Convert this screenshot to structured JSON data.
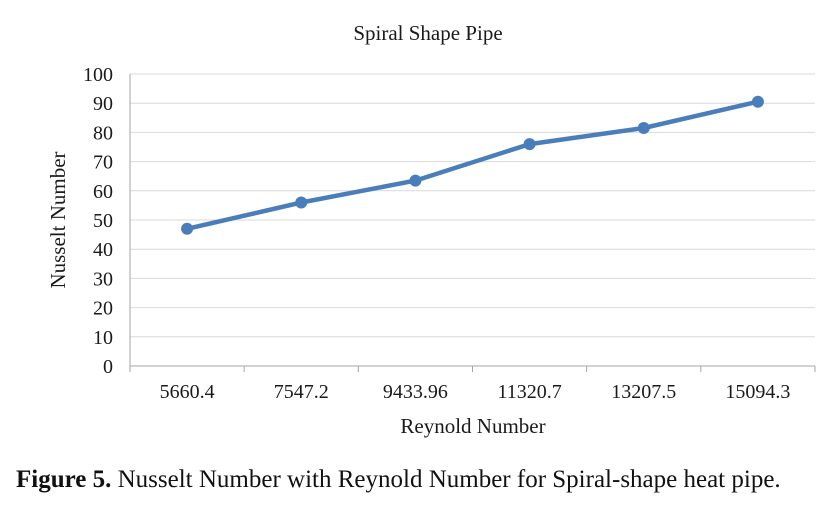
{
  "chart_data": {
    "type": "line",
    "title": "Spiral Shape Pipe",
    "xlabel": "Reynold Number",
    "ylabel": "Nusselt Number",
    "categories": [
      "5660.4",
      "7547.2",
      "9433.96",
      "11320.7",
      "13207.5",
      "15094.3"
    ],
    "series": [
      {
        "values": [
          47,
          56,
          63.5,
          76,
          81.5,
          90.5
        ]
      }
    ],
    "ylim": [
      0,
      100
    ],
    "yticks": [
      0,
      10,
      20,
      30,
      40,
      50,
      60,
      70,
      80,
      90,
      100
    ],
    "grid": true,
    "legend": "none",
    "colors": {
      "line": "#4a7ebb",
      "grid": "#d9d9d9",
      "axis": "#a6a6a6",
      "text": "#1a1a1a"
    }
  },
  "caption": {
    "label": "Figure 5.",
    "text": " Nusselt Number with Reynold Number for Spiral-shape heat pipe."
  }
}
